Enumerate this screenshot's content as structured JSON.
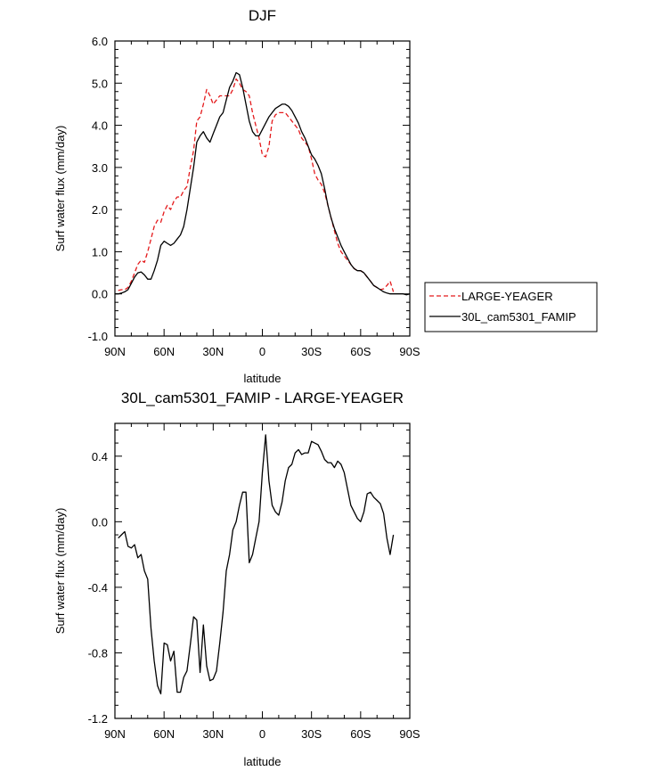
{
  "chart_data": [
    {
      "type": "line",
      "title": "DJF",
      "xlabel": "latitude",
      "ylabel": "Surf water flux (mm/day)",
      "xlim": [
        90,
        -90
      ],
      "ylim": [
        -1.0,
        6.0
      ],
      "x_tick_values": [
        90,
        60,
        30,
        0,
        -30,
        -60,
        -90
      ],
      "x_tick_labels": [
        "90N",
        "60N",
        "30N",
        "0",
        "30S",
        "60S",
        "90S"
      ],
      "y_tick_values": [
        -1.0,
        0.0,
        1.0,
        2.0,
        3.0,
        4.0,
        5.0,
        6.0
      ],
      "y_tick_labels": [
        "-1.0",
        "0.0",
        "1.0",
        "2.0",
        "3.0",
        "4.0",
        "5.0",
        "6.0"
      ],
      "legend_position": "right",
      "series": [
        {
          "name": "LARGE-YEAGER",
          "color": "#e41a1c",
          "style": "dashed",
          "x": [
            88,
            86,
            84,
            82,
            80,
            78,
            76,
            74,
            72,
            70,
            68,
            66,
            64,
            62,
            60,
            58,
            56,
            54,
            52,
            50,
            48,
            46,
            44,
            42,
            40,
            38,
            36,
            34,
            32,
            30,
            28,
            26,
            24,
            22,
            20,
            18,
            16,
            14,
            12,
            10,
            8,
            6,
            4,
            2,
            0,
            -2,
            -4,
            -6,
            -8,
            -10,
            -12,
            -14,
            -16,
            -18,
            -20,
            -22,
            -24,
            -26,
            -28,
            -30,
            -32,
            -34,
            -36,
            -38,
            -40,
            -42,
            -44,
            -46,
            -48,
            -50,
            -52,
            -54,
            -56,
            -58,
            -60,
            -62,
            -64,
            -66,
            -68,
            -70,
            -72,
            -74,
            -76,
            -78,
            -80
          ],
          "y": [
            0.08,
            0.1,
            0.1,
            0.15,
            0.3,
            0.5,
            0.7,
            0.8,
            0.75,
            1.0,
            1.3,
            1.6,
            1.75,
            1.7,
            1.95,
            2.1,
            2.0,
            2.2,
            2.3,
            2.3,
            2.45,
            2.55,
            3.0,
            3.4,
            4.1,
            4.2,
            4.5,
            4.85,
            4.7,
            4.5,
            4.6,
            4.7,
            4.7,
            4.7,
            4.7,
            4.85,
            5.1,
            5.0,
            4.85,
            4.8,
            4.7,
            4.3,
            4.0,
            3.7,
            3.3,
            3.25,
            3.5,
            4.1,
            4.25,
            4.3,
            4.3,
            4.3,
            4.2,
            4.1,
            4.0,
            3.9,
            3.7,
            3.6,
            3.5,
            3.2,
            2.85,
            2.7,
            2.6,
            2.4,
            2.1,
            1.8,
            1.5,
            1.2,
            1.0,
            0.9,
            0.8,
            0.7,
            0.6,
            0.55,
            0.55,
            0.5,
            0.4,
            0.3,
            0.2,
            0.15,
            0.1,
            0.12,
            0.2,
            0.3,
            0.05
          ]
        },
        {
          "name": "30L_cam5301_FAMIP",
          "color": "#000000",
          "style": "solid",
          "x": [
            90,
            88,
            86,
            84,
            82,
            80,
            78,
            76,
            74,
            72,
            70,
            68,
            66,
            64,
            62,
            60,
            58,
            56,
            54,
            52,
            50,
            48,
            46,
            44,
            42,
            40,
            38,
            36,
            34,
            32,
            30,
            28,
            26,
            24,
            22,
            20,
            18,
            16,
            14,
            12,
            10,
            8,
            6,
            4,
            2,
            0,
            -2,
            -4,
            -6,
            -8,
            -10,
            -12,
            -14,
            -16,
            -18,
            -20,
            -22,
            -24,
            -26,
            -28,
            -30,
            -32,
            -34,
            -36,
            -38,
            -40,
            -42,
            -44,
            -46,
            -48,
            -50,
            -52,
            -54,
            -56,
            -58,
            -60,
            -62,
            -64,
            -66,
            -68,
            -70,
            -72,
            -74,
            -76,
            -78,
            -80,
            -82,
            -84,
            -86,
            -88,
            -90
          ],
          "y": [
            0.0,
            0.0,
            0.02,
            0.05,
            0.1,
            0.25,
            0.4,
            0.5,
            0.52,
            0.45,
            0.35,
            0.35,
            0.55,
            0.8,
            1.15,
            1.25,
            1.2,
            1.15,
            1.2,
            1.3,
            1.4,
            1.6,
            2.0,
            2.5,
            3.0,
            3.6,
            3.75,
            3.85,
            3.7,
            3.6,
            3.8,
            4.0,
            4.2,
            4.3,
            4.6,
            4.9,
            5.05,
            5.25,
            5.2,
            4.9,
            4.5,
            4.1,
            3.85,
            3.75,
            3.75,
            3.9,
            4.05,
            4.2,
            4.3,
            4.4,
            4.45,
            4.5,
            4.5,
            4.45,
            4.35,
            4.2,
            4.05,
            3.85,
            3.7,
            3.5,
            3.3,
            3.2,
            3.05,
            2.85,
            2.5,
            2.1,
            1.8,
            1.55,
            1.35,
            1.15,
            1.0,
            0.85,
            0.7,
            0.6,
            0.55,
            0.55,
            0.5,
            0.4,
            0.3,
            0.2,
            0.15,
            0.1,
            0.05,
            0.02,
            0.0,
            0.0,
            0.0,
            0.0,
            0.0,
            -0.02,
            0.0
          ]
        }
      ]
    },
    {
      "type": "line",
      "title": "30L_cam5301_FAMIP - LARGE-YEAGER",
      "xlabel": "latitude",
      "ylabel": "Surf water flux (mm/day)",
      "xlim": [
        90,
        -90
      ],
      "ylim": [
        -1.2,
        0.6
      ],
      "x_tick_values": [
        90,
        60,
        30,
        0,
        -30,
        -60,
        -90
      ],
      "x_tick_labels": [
        "90N",
        "60N",
        "30N",
        "0",
        "30S",
        "60S",
        "90S"
      ],
      "y_tick_values": [
        -1.2,
        -0.8,
        -0.4,
        0.0,
        0.4
      ],
      "y_tick_labels": [
        "-1.2",
        "-0.8",
        "-0.4",
        "0.0",
        "0.4"
      ],
      "series": [
        {
          "color": "#000000",
          "style": "solid",
          "x": [
            88,
            86,
            84,
            82,
            80,
            78,
            76,
            74,
            72,
            70,
            68,
            66,
            64,
            62,
            60,
            58,
            56,
            54,
            52,
            50,
            48,
            46,
            44,
            42,
            40,
            38,
            36,
            34,
            32,
            30,
            28,
            26,
            24,
            22,
            20,
            18,
            16,
            14,
            12,
            10,
            8,
            6,
            4,
            2,
            0,
            -2,
            -4,
            -6,
            -8,
            -10,
            -12,
            -14,
            -16,
            -18,
            -20,
            -22,
            -24,
            -26,
            -28,
            -30,
            -32,
            -34,
            -36,
            -38,
            -40,
            -42,
            -44,
            -46,
            -48,
            -50,
            -52,
            -54,
            -56,
            -58,
            -60,
            -62,
            -64,
            -66,
            -68,
            -70,
            -72,
            -74,
            -76,
            -78,
            -80
          ],
          "y": [
            -0.1,
            -0.08,
            -0.06,
            -0.15,
            -0.16,
            -0.14,
            -0.22,
            -0.2,
            -0.3,
            -0.35,
            -0.65,
            -0.85,
            -1.0,
            -1.05,
            -0.74,
            -0.75,
            -0.85,
            -0.79,
            -1.04,
            -1.04,
            -0.95,
            -0.91,
            -0.75,
            -0.58,
            -0.6,
            -0.92,
            -0.63,
            -0.88,
            -0.97,
            -0.96,
            -0.91,
            -0.74,
            -0.55,
            -0.3,
            -0.2,
            -0.05,
            0.0,
            0.1,
            0.18,
            0.18,
            -0.25,
            -0.2,
            -0.1,
            0.0,
            0.3,
            0.53,
            0.25,
            0.1,
            0.06,
            0.04,
            0.12,
            0.25,
            0.33,
            0.35,
            0.42,
            0.44,
            0.41,
            0.42,
            0.42,
            0.49,
            0.48,
            0.47,
            0.43,
            0.38,
            0.36,
            0.36,
            0.33,
            0.37,
            0.35,
            0.3,
            0.2,
            0.1,
            0.06,
            0.02,
            0.0,
            0.06,
            0.17,
            0.18,
            0.15,
            0.13,
            0.11,
            0.05,
            -0.1,
            -0.2,
            -0.08
          ]
        }
      ]
    }
  ]
}
